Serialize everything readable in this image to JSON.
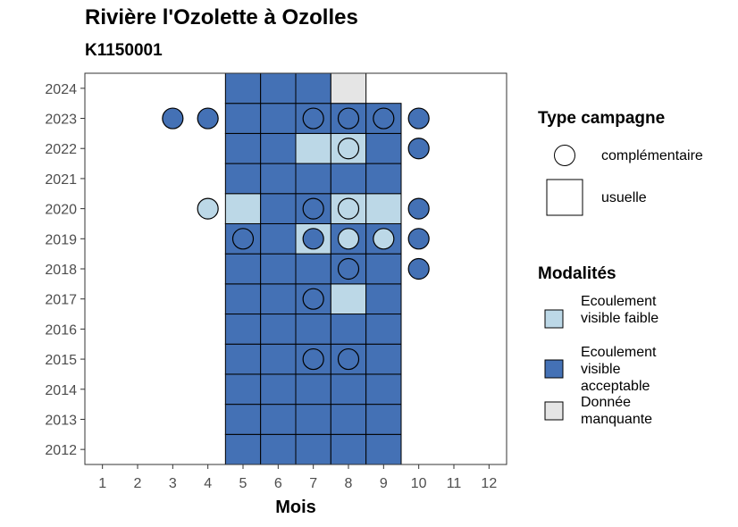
{
  "title": "Rivière l'Ozolette à Ozolles",
  "subtitle": "K1150001",
  "legend": {
    "type_title": "Type campagne",
    "type_items": [
      {
        "label": "complémentaire",
        "shape": "circle"
      },
      {
        "label": "usuelle",
        "shape": "square"
      }
    ],
    "modalites_title": "Modalités",
    "modalites_items": [
      {
        "label": "Ecoulement visible faible",
        "color": "#bcd8e7"
      },
      {
        "label": "Ecoulement visible acceptable",
        "color": "#4471b5"
      },
      {
        "label": "Donnée manquante",
        "color": "#e5e5e5"
      }
    ]
  },
  "chart_data": {
    "type": "heatmap",
    "xlabel": "Mois",
    "ylabel": "",
    "x_ticks": [
      1,
      2,
      3,
      4,
      5,
      6,
      7,
      8,
      9,
      10,
      11,
      12
    ],
    "y_ticks": [
      2012,
      2013,
      2014,
      2015,
      2016,
      2017,
      2018,
      2019,
      2020,
      2021,
      2022,
      2023,
      2024
    ],
    "xlim": [
      0.5,
      12.5
    ],
    "ylim": [
      2011.5,
      2024.5
    ],
    "colors": {
      "faible": "#bcd8e7",
      "acceptable": "#4471b5",
      "manquante": "#e5e5e5"
    },
    "usuelle": [
      {
        "year": 2012,
        "month": 5,
        "m": "acceptable"
      },
      {
        "year": 2012,
        "month": 6,
        "m": "acceptable"
      },
      {
        "year": 2012,
        "month": 7,
        "m": "acceptable"
      },
      {
        "year": 2012,
        "month": 8,
        "m": "acceptable"
      },
      {
        "year": 2012,
        "month": 9,
        "m": "acceptable"
      },
      {
        "year": 2013,
        "month": 5,
        "m": "acceptable"
      },
      {
        "year": 2013,
        "month": 6,
        "m": "acceptable"
      },
      {
        "year": 2013,
        "month": 7,
        "m": "acceptable"
      },
      {
        "year": 2013,
        "month": 8,
        "m": "acceptable"
      },
      {
        "year": 2013,
        "month": 9,
        "m": "acceptable"
      },
      {
        "year": 2014,
        "month": 5,
        "m": "acceptable"
      },
      {
        "year": 2014,
        "month": 6,
        "m": "acceptable"
      },
      {
        "year": 2014,
        "month": 7,
        "m": "acceptable"
      },
      {
        "year": 2014,
        "month": 8,
        "m": "acceptable"
      },
      {
        "year": 2014,
        "month": 9,
        "m": "acceptable"
      },
      {
        "year": 2015,
        "month": 5,
        "m": "acceptable"
      },
      {
        "year": 2015,
        "month": 6,
        "m": "acceptable"
      },
      {
        "year": 2015,
        "month": 7,
        "m": "acceptable"
      },
      {
        "year": 2015,
        "month": 8,
        "m": "acceptable"
      },
      {
        "year": 2015,
        "month": 9,
        "m": "acceptable"
      },
      {
        "year": 2016,
        "month": 5,
        "m": "acceptable"
      },
      {
        "year": 2016,
        "month": 6,
        "m": "acceptable"
      },
      {
        "year": 2016,
        "month": 7,
        "m": "acceptable"
      },
      {
        "year": 2016,
        "month": 8,
        "m": "acceptable"
      },
      {
        "year": 2016,
        "month": 9,
        "m": "acceptable"
      },
      {
        "year": 2017,
        "month": 5,
        "m": "acceptable"
      },
      {
        "year": 2017,
        "month": 6,
        "m": "acceptable"
      },
      {
        "year": 2017,
        "month": 7,
        "m": "acceptable"
      },
      {
        "year": 2017,
        "month": 8,
        "m": "faible"
      },
      {
        "year": 2017,
        "month": 9,
        "m": "acceptable"
      },
      {
        "year": 2018,
        "month": 5,
        "m": "acceptable"
      },
      {
        "year": 2018,
        "month": 6,
        "m": "acceptable"
      },
      {
        "year": 2018,
        "month": 7,
        "m": "acceptable"
      },
      {
        "year": 2018,
        "month": 8,
        "m": "acceptable"
      },
      {
        "year": 2018,
        "month": 9,
        "m": "acceptable"
      },
      {
        "year": 2019,
        "month": 5,
        "m": "acceptable"
      },
      {
        "year": 2019,
        "month": 6,
        "m": "acceptable"
      },
      {
        "year": 2019,
        "month": 7,
        "m": "faible"
      },
      {
        "year": 2019,
        "month": 8,
        "m": "acceptable"
      },
      {
        "year": 2019,
        "month": 9,
        "m": "acceptable"
      },
      {
        "year": 2020,
        "month": 5,
        "m": "faible"
      },
      {
        "year": 2020,
        "month": 6,
        "m": "acceptable"
      },
      {
        "year": 2020,
        "month": 7,
        "m": "acceptable"
      },
      {
        "year": 2020,
        "month": 8,
        "m": "faible"
      },
      {
        "year": 2020,
        "month": 9,
        "m": "faible"
      },
      {
        "year": 2021,
        "month": 5,
        "m": "acceptable"
      },
      {
        "year": 2021,
        "month": 6,
        "m": "acceptable"
      },
      {
        "year": 2021,
        "month": 7,
        "m": "acceptable"
      },
      {
        "year": 2021,
        "month": 8,
        "m": "acceptable"
      },
      {
        "year": 2021,
        "month": 9,
        "m": "acceptable"
      },
      {
        "year": 2022,
        "month": 5,
        "m": "acceptable"
      },
      {
        "year": 2022,
        "month": 6,
        "m": "acceptable"
      },
      {
        "year": 2022,
        "month": 7,
        "m": "faible"
      },
      {
        "year": 2022,
        "month": 8,
        "m": "faible"
      },
      {
        "year": 2022,
        "month": 9,
        "m": "acceptable"
      },
      {
        "year": 2023,
        "month": 5,
        "m": "acceptable"
      },
      {
        "year": 2023,
        "month": 6,
        "m": "acceptable"
      },
      {
        "year": 2023,
        "month": 7,
        "m": "acceptable"
      },
      {
        "year": 2023,
        "month": 8,
        "m": "acceptable"
      },
      {
        "year": 2023,
        "month": 9,
        "m": "acceptable"
      },
      {
        "year": 2024,
        "month": 5,
        "m": "acceptable"
      },
      {
        "year": 2024,
        "month": 6,
        "m": "acceptable"
      },
      {
        "year": 2024,
        "month": 7,
        "m": "acceptable"
      },
      {
        "year": 2024,
        "month": 8,
        "m": "manquante"
      }
    ],
    "complementaire": [
      {
        "year": 2023,
        "month": 3,
        "m": "acceptable"
      },
      {
        "year": 2023,
        "month": 4,
        "m": "acceptable"
      },
      {
        "year": 2023,
        "month": 7,
        "m": "acceptable"
      },
      {
        "year": 2023,
        "month": 8,
        "m": "acceptable"
      },
      {
        "year": 2023,
        "month": 9,
        "m": "acceptable"
      },
      {
        "year": 2023,
        "month": 10,
        "m": "acceptable"
      },
      {
        "year": 2022,
        "month": 8,
        "m": "faible"
      },
      {
        "year": 2022,
        "month": 10,
        "m": "acceptable"
      },
      {
        "year": 2020,
        "month": 4,
        "m": "faible"
      },
      {
        "year": 2020,
        "month": 7,
        "m": "acceptable"
      },
      {
        "year": 2020,
        "month": 8,
        "m": "faible"
      },
      {
        "year": 2020,
        "month": 10,
        "m": "acceptable"
      },
      {
        "year": 2019,
        "month": 5,
        "m": "acceptable"
      },
      {
        "year": 2019,
        "month": 7,
        "m": "acceptable"
      },
      {
        "year": 2019,
        "month": 8,
        "m": "faible"
      },
      {
        "year": 2019,
        "month": 9,
        "m": "faible"
      },
      {
        "year": 2019,
        "month": 10,
        "m": "acceptable"
      },
      {
        "year": 2018,
        "month": 8,
        "m": "acceptable"
      },
      {
        "year": 2018,
        "month": 10,
        "m": "acceptable"
      },
      {
        "year": 2017,
        "month": 7,
        "m": "acceptable"
      },
      {
        "year": 2015,
        "month": 7,
        "m": "acceptable"
      },
      {
        "year": 2015,
        "month": 8,
        "m": "acceptable"
      }
    ]
  }
}
